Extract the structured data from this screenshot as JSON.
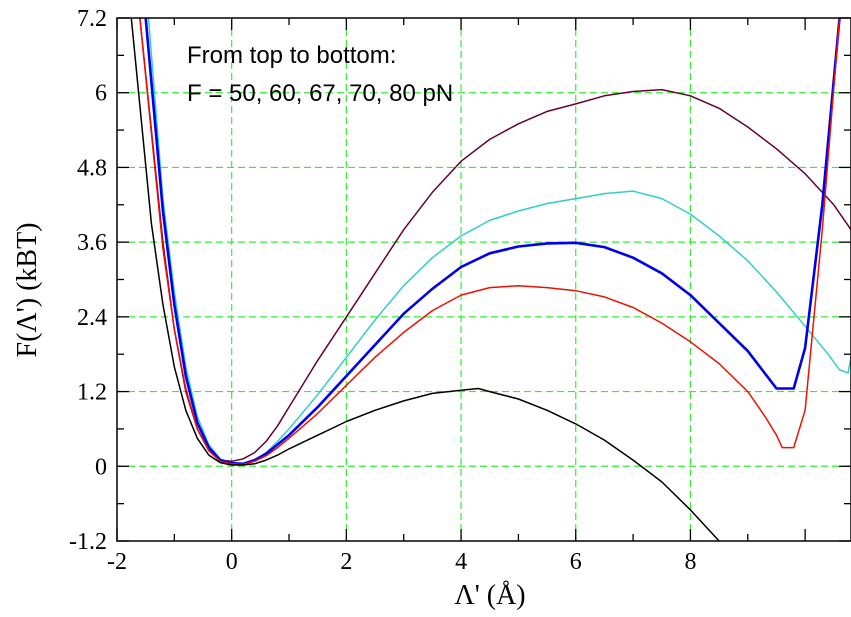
{
  "chart_data": {
    "type": "line",
    "title": "",
    "annotation": {
      "line1": "From top to bottom:",
      "line2": "F = 50, 60, 67, 70, 80 pN"
    },
    "xlabel": "Λ' (Å)",
    "ylabel": "F(Λ') (kBT)",
    "xlim": [
      -2,
      10.8
    ],
    "ylim": [
      -1.2,
      7.2
    ],
    "xticks": [
      -2,
      0,
      2,
      4,
      6,
      8
    ],
    "xtick_labels": [
      "-2",
      "0",
      "2",
      "4",
      "6",
      "8"
    ],
    "yticks": [
      -1.2,
      0,
      1.2,
      2.4,
      3.6,
      4.8,
      6,
      7.2
    ],
    "ytick_labels": [
      "-1.2",
      "0",
      "1.2",
      "2.4",
      "3.6",
      "4.8",
      "6",
      "7.2"
    ],
    "grid": true,
    "series": [
      {
        "color": "#660033",
        "width": 1.5,
        "points": [
          [
            -1.6,
            7.2
          ],
          [
            -1.2,
            3.6
          ],
          [
            -1.0,
            2.2
          ],
          [
            -0.8,
            1.2
          ],
          [
            -0.6,
            0.6
          ],
          [
            -0.4,
            0.25
          ],
          [
            -0.2,
            0.1
          ],
          [
            0.0,
            0.08
          ],
          [
            0.2,
            0.12
          ],
          [
            0.4,
            0.22
          ],
          [
            0.6,
            0.4
          ],
          [
            0.8,
            0.65
          ],
          [
            1.0,
            0.95
          ],
          [
            1.5,
            1.7
          ],
          [
            2.0,
            2.4
          ],
          [
            2.5,
            3.1
          ],
          [
            3.0,
            3.8
          ],
          [
            3.5,
            4.4
          ],
          [
            4.0,
            4.9
          ],
          [
            4.5,
            5.25
          ],
          [
            5.0,
            5.5
          ],
          [
            5.5,
            5.7
          ],
          [
            6.0,
            5.82
          ],
          [
            6.5,
            5.95
          ],
          [
            7.0,
            6.02
          ],
          [
            7.5,
            6.05
          ],
          [
            8.0,
            5.95
          ],
          [
            8.5,
            5.75
          ],
          [
            9.0,
            5.45
          ],
          [
            9.5,
            5.1
          ],
          [
            10.0,
            4.7
          ],
          [
            10.5,
            4.2
          ],
          [
            10.8,
            3.8
          ]
        ]
      },
      {
        "color": "#33cccc",
        "width": 1.5,
        "points": [
          [
            -1.45,
            7.2
          ],
          [
            -1.2,
            4.3
          ],
          [
            -1.0,
            2.8
          ],
          [
            -0.8,
            1.6
          ],
          [
            -0.6,
            0.8
          ],
          [
            -0.4,
            0.35
          ],
          [
            -0.2,
            0.12
          ],
          [
            0.0,
            0.05
          ],
          [
            0.2,
            0.04
          ],
          [
            0.4,
            0.1
          ],
          [
            0.6,
            0.22
          ],
          [
            0.8,
            0.4
          ],
          [
            1.0,
            0.6
          ],
          [
            1.5,
            1.15
          ],
          [
            2.0,
            1.75
          ],
          [
            2.5,
            2.35
          ],
          [
            3.0,
            2.9
          ],
          [
            3.5,
            3.35
          ],
          [
            4.0,
            3.7
          ],
          [
            4.5,
            3.95
          ],
          [
            5.0,
            4.1
          ],
          [
            5.5,
            4.22
          ],
          [
            6.0,
            4.3
          ],
          [
            6.5,
            4.38
          ],
          [
            7.0,
            4.42
          ],
          [
            7.5,
            4.3
          ],
          [
            8.0,
            4.05
          ],
          [
            8.5,
            3.7
          ],
          [
            9.0,
            3.3
          ],
          [
            9.5,
            2.8
          ],
          [
            10.0,
            2.25
          ],
          [
            10.4,
            1.8
          ],
          [
            10.6,
            1.55
          ],
          [
            10.75,
            1.5
          ],
          [
            10.8,
            1.75
          ]
        ]
      },
      {
        "color": "#0000ee",
        "width": 2.6,
        "points": [
          [
            -1.5,
            7.2
          ],
          [
            -1.2,
            4.1
          ],
          [
            -1.0,
            2.6
          ],
          [
            -0.8,
            1.45
          ],
          [
            -0.6,
            0.7
          ],
          [
            -0.4,
            0.3
          ],
          [
            -0.2,
            0.1
          ],
          [
            0.0,
            0.05
          ],
          [
            0.2,
            0.04
          ],
          [
            0.4,
            0.1
          ],
          [
            0.6,
            0.2
          ],
          [
            0.8,
            0.35
          ],
          [
            1.0,
            0.5
          ],
          [
            1.5,
            0.95
          ],
          [
            2.0,
            1.45
          ],
          [
            2.5,
            1.95
          ],
          [
            3.0,
            2.45
          ],
          [
            3.5,
            2.85
          ],
          [
            4.0,
            3.2
          ],
          [
            4.5,
            3.42
          ],
          [
            5.0,
            3.53
          ],
          [
            5.5,
            3.58
          ],
          [
            6.0,
            3.59
          ],
          [
            6.5,
            3.52
          ],
          [
            7.0,
            3.35
          ],
          [
            7.5,
            3.1
          ],
          [
            8.0,
            2.75
          ],
          [
            8.5,
            2.3
          ],
          [
            9.0,
            1.85
          ],
          [
            9.5,
            1.25
          ],
          [
            9.8,
            1.25
          ],
          [
            10.0,
            1.9
          ],
          [
            10.3,
            4.2
          ],
          [
            10.6,
            7.2
          ]
        ]
      },
      {
        "color": "#ee1100",
        "width": 1.5,
        "points": [
          [
            -1.6,
            7.2
          ],
          [
            -1.2,
            3.5
          ],
          [
            -1.0,
            2.2
          ],
          [
            -0.8,
            1.25
          ],
          [
            -0.6,
            0.6
          ],
          [
            -0.4,
            0.25
          ],
          [
            -0.2,
            0.08
          ],
          [
            0.0,
            0.04
          ],
          [
            0.2,
            0.03
          ],
          [
            0.4,
            0.08
          ],
          [
            0.6,
            0.17
          ],
          [
            0.8,
            0.3
          ],
          [
            1.0,
            0.45
          ],
          [
            1.5,
            0.85
          ],
          [
            2.0,
            1.3
          ],
          [
            2.5,
            1.75
          ],
          [
            3.0,
            2.15
          ],
          [
            3.5,
            2.5
          ],
          [
            4.0,
            2.75
          ],
          [
            4.5,
            2.87
          ],
          [
            5.0,
            2.9
          ],
          [
            5.5,
            2.87
          ],
          [
            6.0,
            2.82
          ],
          [
            6.5,
            2.72
          ],
          [
            7.0,
            2.55
          ],
          [
            7.5,
            2.3
          ],
          [
            8.0,
            2.0
          ],
          [
            8.5,
            1.65
          ],
          [
            9.0,
            1.2
          ],
          [
            9.3,
            0.8
          ],
          [
            9.5,
            0.5
          ],
          [
            9.6,
            0.3
          ],
          [
            9.8,
            0.3
          ],
          [
            10.0,
            0.9
          ],
          [
            10.3,
            3.8
          ],
          [
            10.6,
            7.2
          ]
        ]
      },
      {
        "color": "#000000",
        "width": 1.5,
        "points": [
          [
            -1.75,
            7.2
          ],
          [
            -1.4,
            3.9
          ],
          [
            -1.2,
            2.6
          ],
          [
            -1.0,
            1.6
          ],
          [
            -0.8,
            0.9
          ],
          [
            -0.6,
            0.45
          ],
          [
            -0.4,
            0.18
          ],
          [
            -0.2,
            0.06
          ],
          [
            0.0,
            0.02
          ],
          [
            0.2,
            0.02
          ],
          [
            0.4,
            0.04
          ],
          [
            0.6,
            0.1
          ],
          [
            0.8,
            0.18
          ],
          [
            1.0,
            0.28
          ],
          [
            1.5,
            0.5
          ],
          [
            2.0,
            0.72
          ],
          [
            2.5,
            0.9
          ],
          [
            3.0,
            1.05
          ],
          [
            3.5,
            1.17
          ],
          [
            4.0,
            1.22
          ],
          [
            4.3,
            1.25
          ],
          [
            4.5,
            1.2
          ],
          [
            5.0,
            1.08
          ],
          [
            5.5,
            0.9
          ],
          [
            6.0,
            0.68
          ],
          [
            6.5,
            0.42
          ],
          [
            7.0,
            0.1
          ],
          [
            7.5,
            -0.25
          ],
          [
            8.0,
            -0.7
          ],
          [
            8.5,
            -1.2
          ]
        ]
      }
    ]
  }
}
